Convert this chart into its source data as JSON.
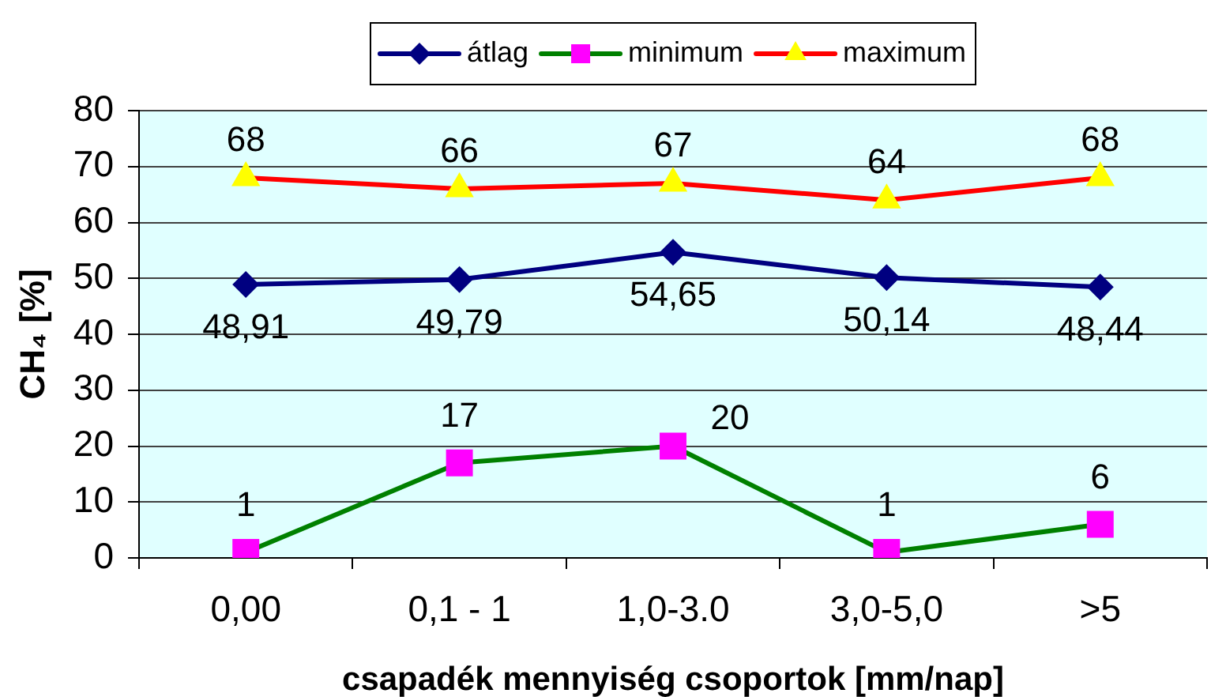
{
  "chart_data": {
    "type": "line",
    "xlabel": "csapadék mennyiség csoportok [mm/nap]",
    "ylabel": "CH₄ [%]",
    "categories": [
      "0,00",
      "0,1 - 1",
      "1,0-3.0",
      "3,0-5,0",
      ">5"
    ],
    "series": [
      {
        "name": "átlag",
        "color": "#000080",
        "marker": "diamond",
        "values": [
          48.91,
          49.79,
          54.65,
          50.14,
          48.44
        ],
        "value_labels": [
          "48,91",
          "49,79",
          "54,65",
          "50,14",
          "48,44"
        ]
      },
      {
        "name": "minimum",
        "color": "#008000",
        "colors": [
          "#ff00ff",
          "#ff00ff",
          "#ff00ff",
          "#ff00ff",
          "#ff00ff"
        ],
        "marker": "square",
        "values": [
          1,
          17,
          20,
          1,
          6
        ],
        "value_labels": [
          "1",
          "17",
          "20",
          "1",
          "6"
        ]
      },
      {
        "name": "maximum",
        "color": "#ff0000",
        "colors": [
          "#ffff00",
          "#ffff00",
          "#ffff00",
          "#ffff00",
          "#ffff00"
        ],
        "marker": "triangle",
        "values": [
          68,
          66,
          67,
          64,
          68
        ],
        "value_labels": [
          "68",
          "66",
          "67",
          "64",
          "68"
        ]
      }
    ],
    "ylim": [
      0,
      80
    ],
    "yticks": [
      0,
      10,
      20,
      30,
      40,
      50,
      60,
      70,
      80
    ],
    "grid": "y",
    "legend": "top",
    "line_style": "solid"
  }
}
